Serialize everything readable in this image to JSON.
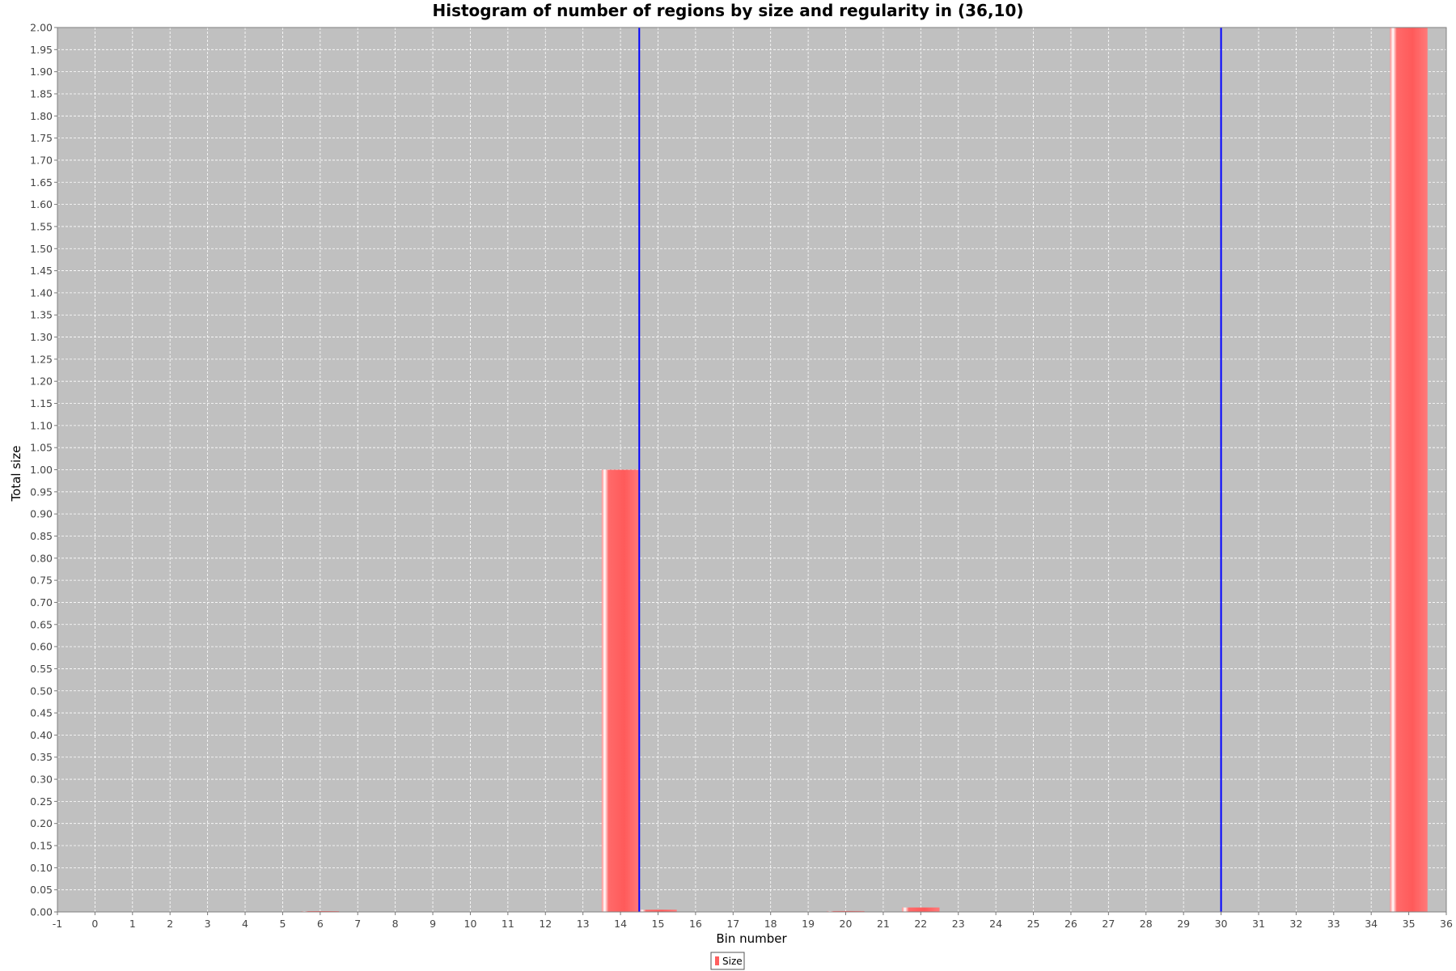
{
  "chart_data": {
    "type": "bar",
    "title": "Histogram of number of regions by size and regularity in (36,10)",
    "xlabel": "Bin number",
    "ylabel": "Total size",
    "xlim": [
      -1,
      36
    ],
    "ylim": [
      0,
      2.0
    ],
    "x_tick_step": 1,
    "y_tick_step": 0.05,
    "grid": true,
    "legend_position": "bottom-center",
    "colors": {
      "plot_background": "#c0c0c0",
      "grid": "#ffffff",
      "bar": "#ff5f5f",
      "marker_line": "#0000ff",
      "outline": "#808080"
    },
    "series": [
      {
        "name": "Size",
        "bins": [
          6,
          14,
          15,
          20,
          22,
          35
        ],
        "values": [
          0.001,
          1.0,
          0.005,
          0.002,
          0.01,
          2.0
        ]
      }
    ],
    "marker_lines_x": [
      14.5,
      30.0
    ]
  }
}
